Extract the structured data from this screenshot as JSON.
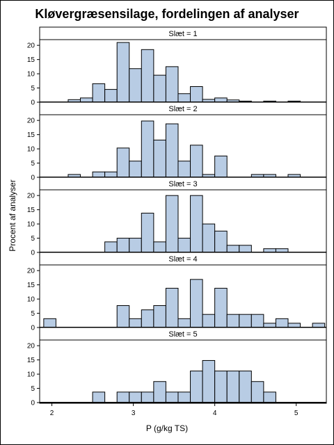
{
  "chart_data": {
    "type": "bar",
    "title": "Kløvergræsensilage, fordelingen af analyser",
    "xlabel": "P (g/kg TS)",
    "ylabel": "Procent af analyser",
    "xlim": [
      1.85,
      5.37
    ],
    "ylim": [
      0,
      22
    ],
    "bin_width": 0.15,
    "x_ticks": [
      "2",
      "3",
      "4",
      "5"
    ],
    "y_ticks": [
      "0",
      "5",
      "10",
      "15",
      "20"
    ],
    "panels": [
      {
        "label": "Slæt = 1",
        "bins": [
          {
            "x": 2.2,
            "y": 0.9
          },
          {
            "x": 2.35,
            "y": 1.5
          },
          {
            "x": 2.5,
            "y": 6.5
          },
          {
            "x": 2.65,
            "y": 4.5
          },
          {
            "x": 2.8,
            "y": 21.0
          },
          {
            "x": 2.95,
            "y": 11.8
          },
          {
            "x": 3.1,
            "y": 18.5
          },
          {
            "x": 3.25,
            "y": 9.5
          },
          {
            "x": 3.4,
            "y": 12.5
          },
          {
            "x": 3.55,
            "y": 3.0
          },
          {
            "x": 3.7,
            "y": 5.5
          },
          {
            "x": 3.85,
            "y": 1.0
          },
          {
            "x": 4.0,
            "y": 1.5
          },
          {
            "x": 4.15,
            "y": 0.8
          },
          {
            "x": 4.3,
            "y": 0.4
          },
          {
            "x": 4.6,
            "y": 0.4
          },
          {
            "x": 4.9,
            "y": 0.4
          }
        ]
      },
      {
        "label": "Slæt = 2",
        "bins": [
          {
            "x": 2.2,
            "y": 1.0
          },
          {
            "x": 2.5,
            "y": 1.9
          },
          {
            "x": 2.65,
            "y": 1.9
          },
          {
            "x": 2.8,
            "y": 10.3
          },
          {
            "x": 2.95,
            "y": 5.7
          },
          {
            "x": 3.1,
            "y": 19.8
          },
          {
            "x": 3.25,
            "y": 13.1
          },
          {
            "x": 3.4,
            "y": 18.8
          },
          {
            "x": 3.55,
            "y": 5.7
          },
          {
            "x": 3.7,
            "y": 11.3
          },
          {
            "x": 3.85,
            "y": 1.0
          },
          {
            "x": 4.0,
            "y": 7.5
          },
          {
            "x": 4.45,
            "y": 1.0
          },
          {
            "x": 4.6,
            "y": 1.0
          },
          {
            "x": 4.9,
            "y": 1.0
          }
        ]
      },
      {
        "label": "Slæt = 3",
        "bins": [
          {
            "x": 2.65,
            "y": 3.7
          },
          {
            "x": 2.8,
            "y": 5.0
          },
          {
            "x": 2.95,
            "y": 5.0
          },
          {
            "x": 3.1,
            "y": 13.8
          },
          {
            "x": 3.25,
            "y": 3.7
          },
          {
            "x": 3.4,
            "y": 20.0
          },
          {
            "x": 3.55,
            "y": 5.0
          },
          {
            "x": 3.7,
            "y": 20.0
          },
          {
            "x": 3.85,
            "y": 10.0
          },
          {
            "x": 4.0,
            "y": 7.5
          },
          {
            "x": 4.15,
            "y": 2.5
          },
          {
            "x": 4.3,
            "y": 2.5
          },
          {
            "x": 4.6,
            "y": 1.3
          },
          {
            "x": 4.75,
            "y": 1.3
          }
        ]
      },
      {
        "label": "Slæt = 4",
        "bins": [
          {
            "x": 1.9,
            "y": 3.1
          },
          {
            "x": 2.8,
            "y": 7.7
          },
          {
            "x": 2.95,
            "y": 3.1
          },
          {
            "x": 3.1,
            "y": 6.2
          },
          {
            "x": 3.25,
            "y": 7.7
          },
          {
            "x": 3.4,
            "y": 13.8
          },
          {
            "x": 3.55,
            "y": 3.1
          },
          {
            "x": 3.7,
            "y": 16.9
          },
          {
            "x": 3.85,
            "y": 4.6
          },
          {
            "x": 4.0,
            "y": 13.8
          },
          {
            "x": 4.15,
            "y": 4.6
          },
          {
            "x": 4.3,
            "y": 4.6
          },
          {
            "x": 4.45,
            "y": 4.6
          },
          {
            "x": 4.6,
            "y": 1.5
          },
          {
            "x": 4.75,
            "y": 3.1
          },
          {
            "x": 4.9,
            "y": 1.5
          },
          {
            "x": 5.2,
            "y": 1.5
          }
        ]
      },
      {
        "label": "Slæt = 5",
        "bins": [
          {
            "x": 2.5,
            "y": 3.7
          },
          {
            "x": 2.8,
            "y": 3.7
          },
          {
            "x": 2.95,
            "y": 3.7
          },
          {
            "x": 3.1,
            "y": 3.7
          },
          {
            "x": 3.25,
            "y": 7.4
          },
          {
            "x": 3.4,
            "y": 3.7
          },
          {
            "x": 3.55,
            "y": 3.7
          },
          {
            "x": 3.7,
            "y": 11.1
          },
          {
            "x": 3.85,
            "y": 14.8
          },
          {
            "x": 4.0,
            "y": 11.1
          },
          {
            "x": 4.15,
            "y": 11.1
          },
          {
            "x": 4.3,
            "y": 11.1
          },
          {
            "x": 4.45,
            "y": 7.4
          },
          {
            "x": 4.6,
            "y": 3.7
          }
        ]
      }
    ],
    "colors": {
      "bar_fill": "#b8cce4",
      "bar_stroke": "#000000",
      "header_fill": "#ffffff"
    }
  }
}
